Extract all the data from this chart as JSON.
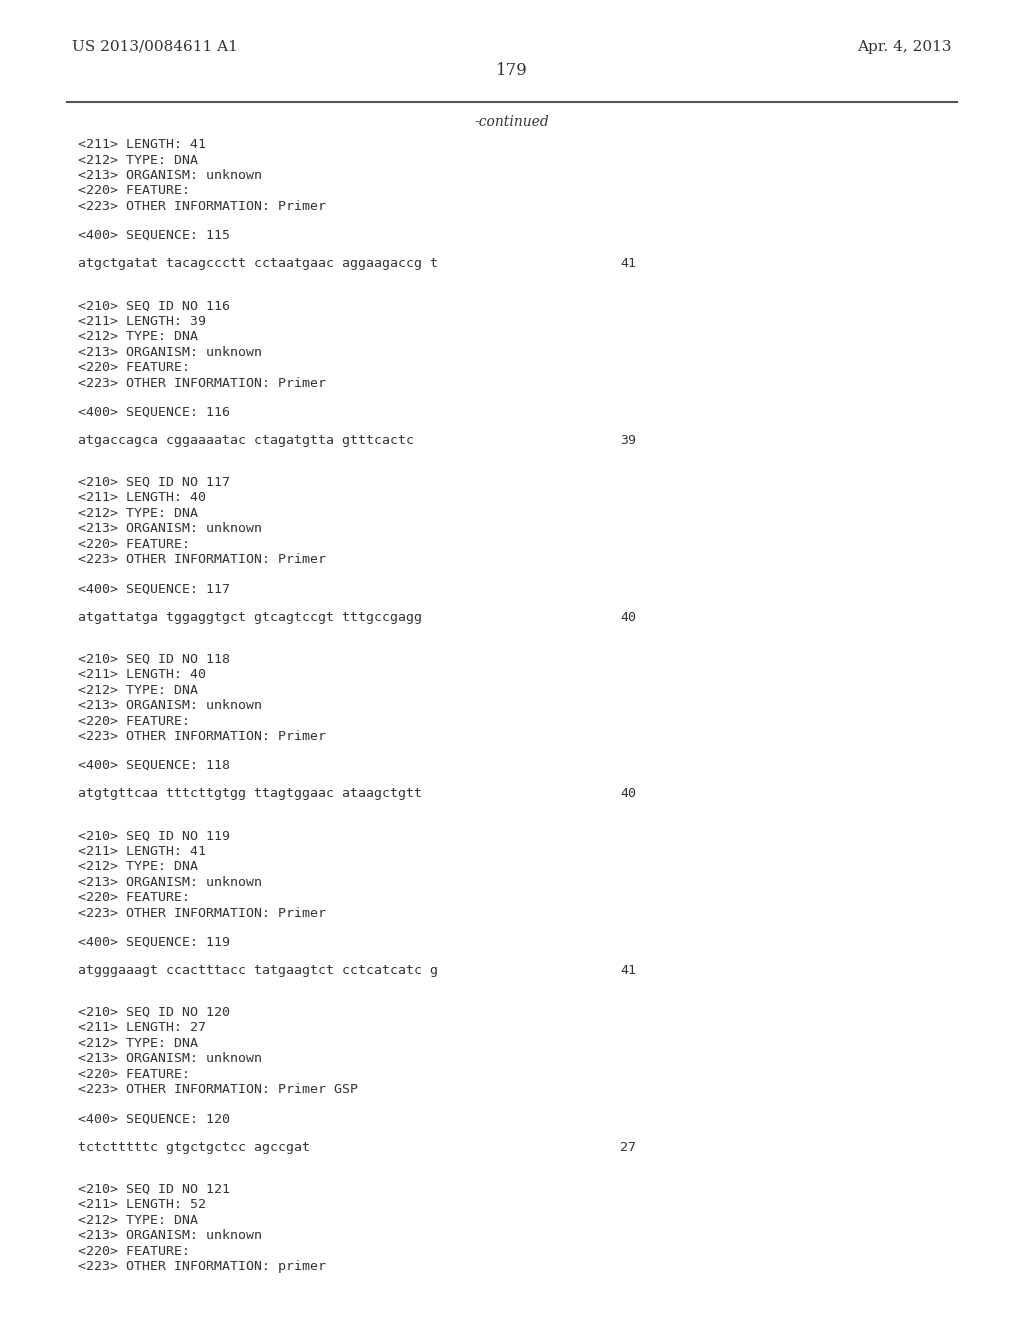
{
  "header_left": "US 2013/0084611 A1",
  "header_right": "Apr. 4, 2013",
  "page_number": "179",
  "continued_label": "-continued",
  "background_color": "#ffffff",
  "text_color": "#333333",
  "line_color": "#555555",
  "content": [
    {
      "type": "block",
      "lines": [
        "<211> LENGTH: 41",
        "<212> TYPE: DNA",
        "<213> ORGANISM: unknown",
        "<220> FEATURE:",
        "<223> OTHER INFORMATION: Primer"
      ]
    },
    {
      "type": "blank"
    },
    {
      "type": "seq_label",
      "text": "<400> SEQUENCE: 115"
    },
    {
      "type": "blank"
    },
    {
      "type": "seq_data",
      "text": "atgctgatat tacagccctt cctaatgaac aggaagaccg t",
      "num": "41"
    },
    {
      "type": "blank"
    },
    {
      "type": "blank"
    },
    {
      "type": "block",
      "lines": [
        "<210> SEQ ID NO 116",
        "<211> LENGTH: 39",
        "<212> TYPE: DNA",
        "<213> ORGANISM: unknown",
        "<220> FEATURE:",
        "<223> OTHER INFORMATION: Primer"
      ]
    },
    {
      "type": "blank"
    },
    {
      "type": "seq_label",
      "text": "<400> SEQUENCE: 116"
    },
    {
      "type": "blank"
    },
    {
      "type": "seq_data",
      "text": "atgaccagca cggaaaatac ctagatgtta gtttcactc",
      "num": "39"
    },
    {
      "type": "blank"
    },
    {
      "type": "blank"
    },
    {
      "type": "block",
      "lines": [
        "<210> SEQ ID NO 117",
        "<211> LENGTH: 40",
        "<212> TYPE: DNA",
        "<213> ORGANISM: unknown",
        "<220> FEATURE:",
        "<223> OTHER INFORMATION: Primer"
      ]
    },
    {
      "type": "blank"
    },
    {
      "type": "seq_label",
      "text": "<400> SEQUENCE: 117"
    },
    {
      "type": "blank"
    },
    {
      "type": "seq_data",
      "text": "atgattatga tggaggtgct gtcagtccgt tttgccgagg",
      "num": "40"
    },
    {
      "type": "blank"
    },
    {
      "type": "blank"
    },
    {
      "type": "block",
      "lines": [
        "<210> SEQ ID NO 118",
        "<211> LENGTH: 40",
        "<212> TYPE: DNA",
        "<213> ORGANISM: unknown",
        "<220> FEATURE:",
        "<223> OTHER INFORMATION: Primer"
      ]
    },
    {
      "type": "blank"
    },
    {
      "type": "seq_label",
      "text": "<400> SEQUENCE: 118"
    },
    {
      "type": "blank"
    },
    {
      "type": "seq_data",
      "text": "atgtgttcaa tttcttgtgg ttagtggaac ataagctgtt",
      "num": "40"
    },
    {
      "type": "blank"
    },
    {
      "type": "blank"
    },
    {
      "type": "block",
      "lines": [
        "<210> SEQ ID NO 119",
        "<211> LENGTH: 41",
        "<212> TYPE: DNA",
        "<213> ORGANISM: unknown",
        "<220> FEATURE:",
        "<223> OTHER INFORMATION: Primer"
      ]
    },
    {
      "type": "blank"
    },
    {
      "type": "seq_label",
      "text": "<400> SEQUENCE: 119"
    },
    {
      "type": "blank"
    },
    {
      "type": "seq_data",
      "text": "atgggaaagt ccactttacc tatgaagtct cctcatcatc g",
      "num": "41"
    },
    {
      "type": "blank"
    },
    {
      "type": "blank"
    },
    {
      "type": "block",
      "lines": [
        "<210> SEQ ID NO 120",
        "<211> LENGTH: 27",
        "<212> TYPE: DNA",
        "<213> ORGANISM: unknown",
        "<220> FEATURE:",
        "<223> OTHER INFORMATION: Primer GSP"
      ]
    },
    {
      "type": "blank"
    },
    {
      "type": "seq_label",
      "text": "<400> SEQUENCE: 120"
    },
    {
      "type": "blank"
    },
    {
      "type": "seq_data",
      "text": "tctctttttc gtgctgctcc agccgat",
      "num": "27"
    },
    {
      "type": "blank"
    },
    {
      "type": "blank"
    },
    {
      "type": "block",
      "lines": [
        "<210> SEQ ID NO 121",
        "<211> LENGTH: 52",
        "<212> TYPE: DNA",
        "<213> ORGANISM: unknown",
        "<220> FEATURE:",
        "<223> OTHER INFORMATION: primer"
      ]
    }
  ]
}
